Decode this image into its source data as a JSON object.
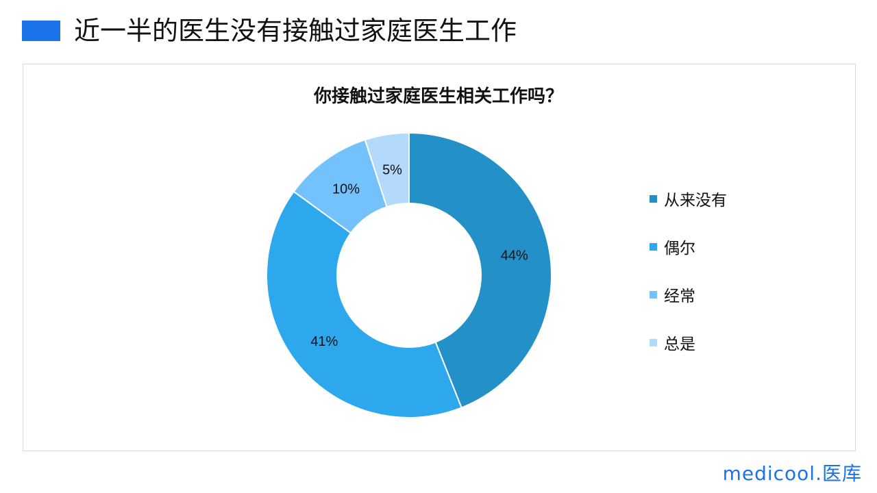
{
  "header": {
    "title": "近一半的医生没有接触过家庭医生工作",
    "accent": "#1a73e8"
  },
  "chart_data": {
    "type": "pie",
    "donut": true,
    "title": "你接触过家庭医生相关工作吗？",
    "categories": [
      "从来没有",
      "偶尔",
      "经常",
      "总是"
    ],
    "values": [
      44,
      41,
      10,
      5
    ],
    "labels": [
      "44%",
      "41%",
      "10%",
      "5%"
    ],
    "colors": [
      "#2490c8",
      "#2ea8ec",
      "#73c2fb",
      "#b3d9fb"
    ],
    "legend": "right"
  },
  "logo": {
    "text": "medicool.医库"
  }
}
